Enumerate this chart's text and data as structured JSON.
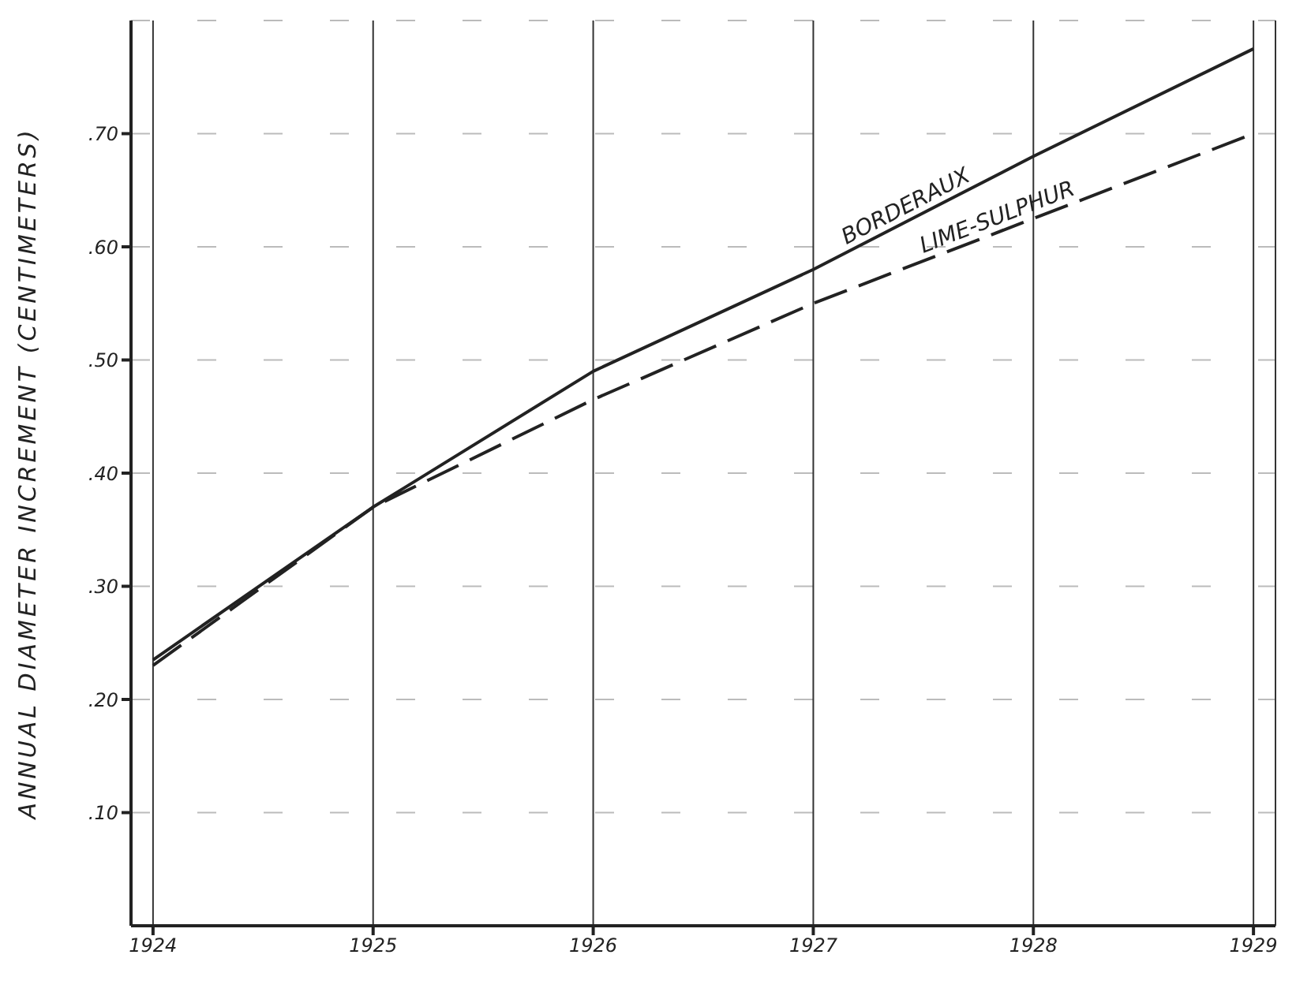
{
  "chart_data": {
    "type": "line",
    "ylabel": "ANNUAL DIAMETER INCREMENT (CENTIMETERS)",
    "x": [
      1924,
      1925,
      1926,
      1927,
      1928,
      1929
    ],
    "series": [
      {
        "name": "BORDERAUX",
        "color": "#222222",
        "line_style": "solid",
        "values": [
          0.235,
          0.37,
          0.49,
          0.58,
          0.68,
          0.775
        ]
      },
      {
        "name": "LIME-SULPHUR",
        "color": "#222222",
        "line_style": "dashed",
        "values": [
          0.23,
          0.37,
          0.465,
          0.55,
          0.625,
          0.7
        ]
      }
    ],
    "xlim": [
      1923.9,
      1929.1
    ],
    "xticks": [
      1924,
      1925,
      1926,
      1927,
      1928,
      1929
    ],
    "ylim": [
      0,
      0.8
    ],
    "yticks": [
      {
        "value": 0.1,
        "label": ".10"
      },
      {
        "value": 0.2,
        "label": ".20"
      },
      {
        "value": 0.3,
        "label": ".30"
      },
      {
        "value": 0.4,
        "label": ".40"
      },
      {
        "value": 0.5,
        "label": ".50"
      },
      {
        "value": 0.6,
        "label": ".60"
      },
      {
        "value": 0.7,
        "label": ".70"
      }
    ],
    "grid": true,
    "legend": false,
    "marker": "none"
  }
}
